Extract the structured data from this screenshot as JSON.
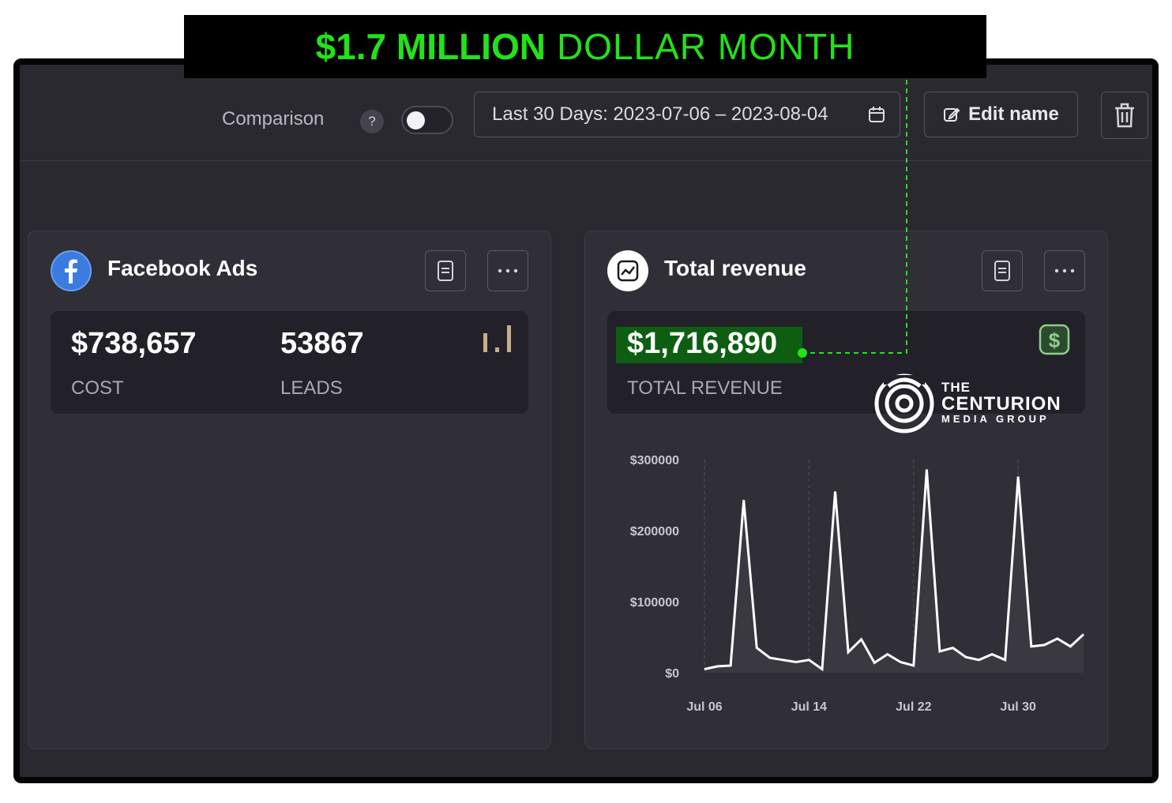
{
  "banner": {
    "bold": "$1.7 MILLION",
    "rest": "DOLLAR MONTH"
  },
  "toolbar": {
    "comparison_label": "Comparison",
    "help_label": "?",
    "date_range": "Last 30 Days: 2023-07-06 – 2023-08-04",
    "edit_label": "Edit name"
  },
  "facebook_card": {
    "title": "Facebook Ads",
    "cost_value": "$738,657",
    "cost_label": "COST",
    "leads_value": "53867",
    "leads_label": "LEADS"
  },
  "revenue_card": {
    "title": "Total revenue",
    "revenue_value": "$1,716,890",
    "revenue_label": "TOTAL REVENUE"
  },
  "logo": {
    "line1": "THE",
    "line2": "CENTURION",
    "line3": "MEDIA GROUP"
  },
  "colors": {
    "highlight": "#22e21a",
    "highlight_bg": "#0e5e12",
    "panel": "#302f37",
    "background": "#2a2930"
  },
  "chart_data": {
    "type": "area",
    "title": "",
    "xlabel": "",
    "ylabel": "",
    "x_tick_labels": [
      "Jul 06",
      "Jul 14",
      "Jul 22",
      "Jul 30"
    ],
    "y_tick_labels": [
      "$300000",
      "$200000",
      "$100000",
      "$0"
    ],
    "ylim": [
      0,
      300000
    ],
    "grid": "vertical dashed at x ticks",
    "x": [
      "2023-07-06",
      "2023-07-07",
      "2023-07-08",
      "2023-07-09",
      "2023-07-10",
      "2023-07-11",
      "2023-07-12",
      "2023-07-13",
      "2023-07-14",
      "2023-07-15",
      "2023-07-16",
      "2023-07-17",
      "2023-07-18",
      "2023-07-19",
      "2023-07-20",
      "2023-07-21",
      "2023-07-22",
      "2023-07-23",
      "2023-07-24",
      "2023-07-25",
      "2023-07-26",
      "2023-07-27",
      "2023-07-28",
      "2023-07-29",
      "2023-07-30",
      "2023-07-31",
      "2023-08-01",
      "2023-08-02",
      "2023-08-03",
      "2023-08-04"
    ],
    "series": [
      {
        "values": [
          5000,
          9000,
          10000,
          243000,
          35000,
          21000,
          18000,
          15000,
          18000,
          5000,
          255000,
          29000,
          47000,
          14000,
          26000,
          15000,
          10000,
          286000,
          30000,
          35000,
          22000,
          18000,
          26000,
          18000,
          276000,
          37000,
          39000,
          48000,
          37000,
          54000
        ]
      }
    ]
  }
}
